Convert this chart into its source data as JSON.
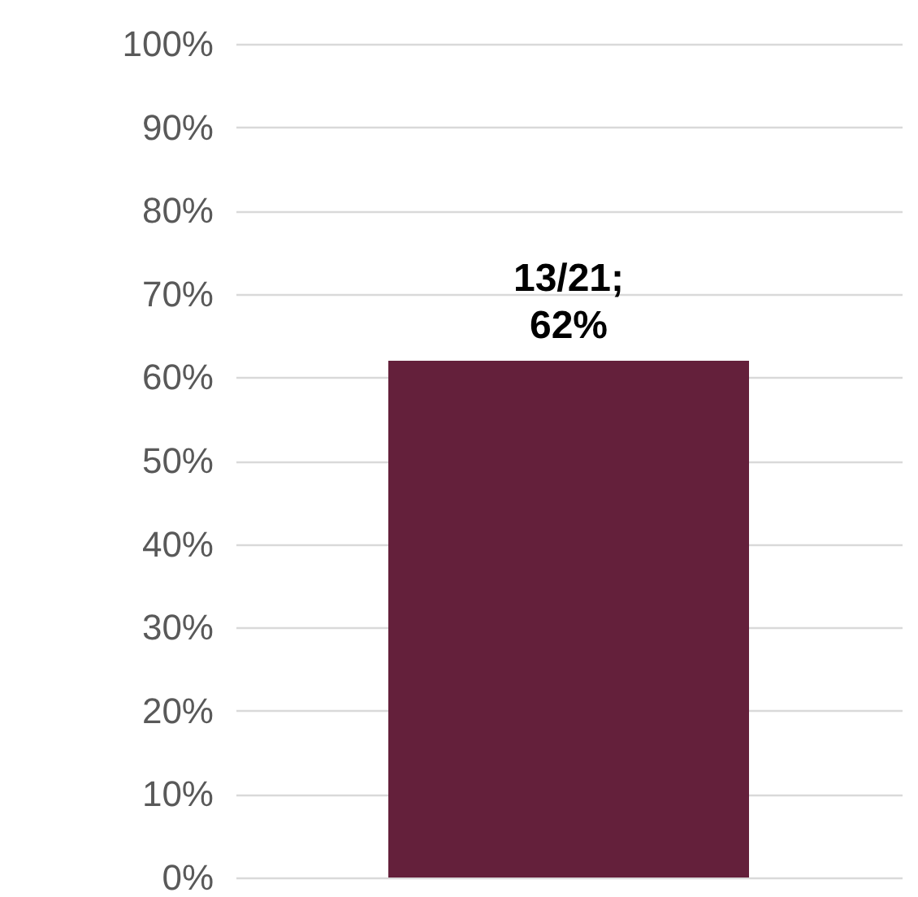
{
  "chart_data": {
    "type": "bar",
    "categories": [
      null
    ],
    "values": [
      62
    ],
    "color": "#64203b",
    "value_labels": [
      "13/21;\n62%"
    ],
    "ylim": [
      0,
      100
    ],
    "yticks": [
      {
        "value": 0,
        "label": "0%"
      },
      {
        "value": 10,
        "label": "10%"
      },
      {
        "value": 20,
        "label": "20%"
      },
      {
        "value": 30,
        "label": "30%"
      },
      {
        "value": 40,
        "label": "40%"
      },
      {
        "value": 50,
        "label": "50%"
      },
      {
        "value": 60,
        "label": "60%"
      },
      {
        "value": 70,
        "label": "70%"
      },
      {
        "value": 80,
        "label": "80%"
      },
      {
        "value": 90,
        "label": "90%"
      },
      {
        "value": 100,
        "label": "100%"
      }
    ],
    "grid": "y",
    "tick_labels": "y"
  }
}
